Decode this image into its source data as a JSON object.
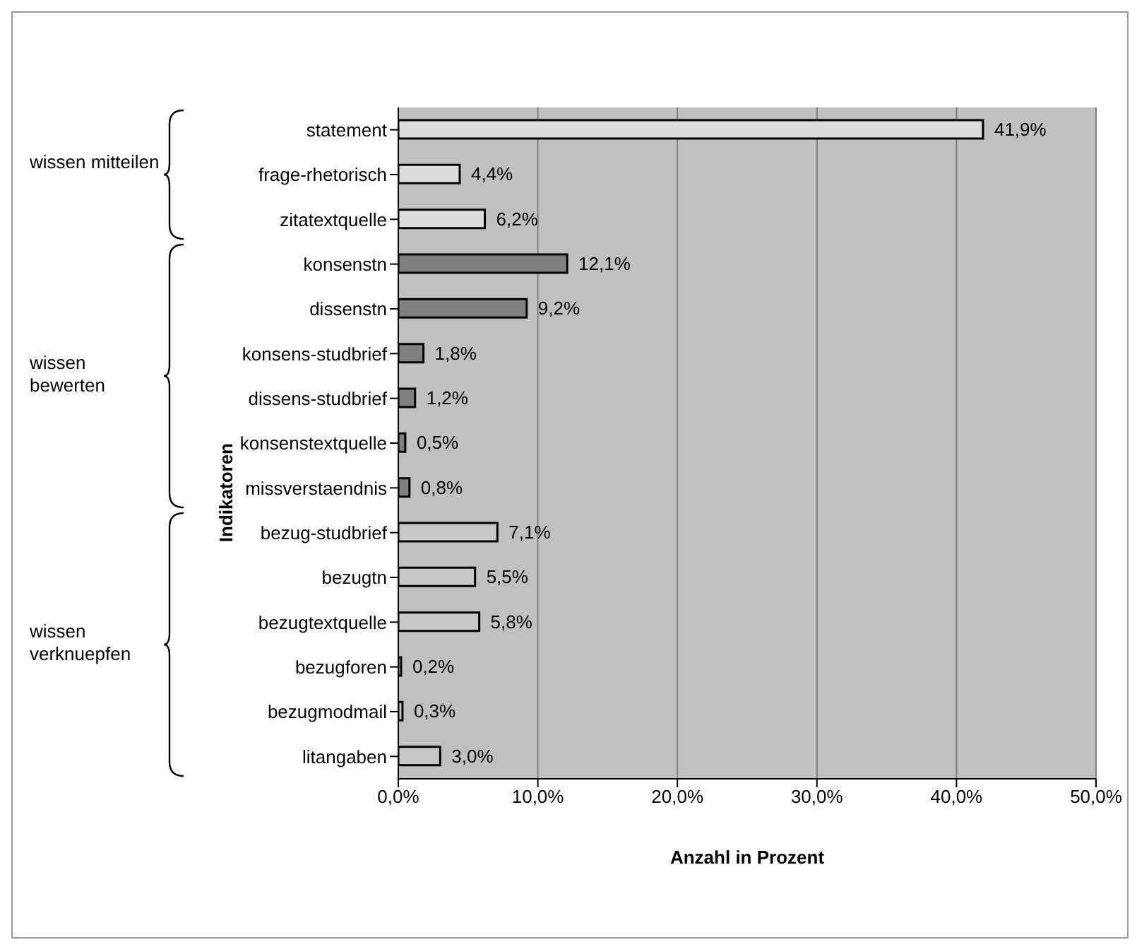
{
  "chart_data": {
    "type": "bar",
    "orientation": "horizontal",
    "xlabel": "Anzahl in Prozent",
    "ylabel": "Indikatoren",
    "categories": [
      "statement",
      "frage-rhetorisch",
      "zitatextquelle",
      "konsenstn",
      "dissenstn",
      "konsens-studbrief",
      "dissens-studbrief",
      "konsenstextquelle",
      "missverstaendnis",
      "bezug-studbrief",
      "bezugtn",
      "bezugtextquelle",
      "bezugforen",
      "bezugmodmail",
      "litangaben"
    ],
    "values": [
      41.9,
      4.4,
      6.2,
      12.1,
      9.2,
      1.8,
      1.2,
      0.5,
      0.8,
      7.1,
      5.5,
      5.8,
      0.2,
      0.3,
      3.0
    ],
    "colors": [
      "#dddddd",
      "#dddddd",
      "#dddddd",
      "#808080",
      "#808080",
      "#808080",
      "#808080",
      "#808080",
      "#808080",
      "#c8c8c8",
      "#c8c8c8",
      "#c8c8c8",
      "#c8c8c8",
      "#c8c8c8",
      "#c8c8c8"
    ],
    "value_labels": [
      "41,9%",
      "4,4%",
      "6,2%",
      "12,1%",
      "9,2%",
      "1,8%",
      "1,2%",
      "0,5%",
      "0,8%",
      "7,1%",
      "5,5%",
      "5,8%",
      "0,2%",
      "0,3%",
      "3,0%"
    ],
    "xlim": [
      0,
      50
    ],
    "xticks": [
      {
        "value": 0,
        "label": "0,0%"
      },
      {
        "value": 10,
        "label": "10,0%"
      },
      {
        "value": 20,
        "label": "20,0%"
      },
      {
        "value": 30,
        "label": "30,0%"
      },
      {
        "value": 40,
        "label": "40,0%"
      },
      {
        "value": 50,
        "label": "50,0%"
      }
    ],
    "grid": "x",
    "annotations": [
      "wissen mitteilen",
      "wissen bewerten",
      "wissen verknuepfen"
    ]
  }
}
